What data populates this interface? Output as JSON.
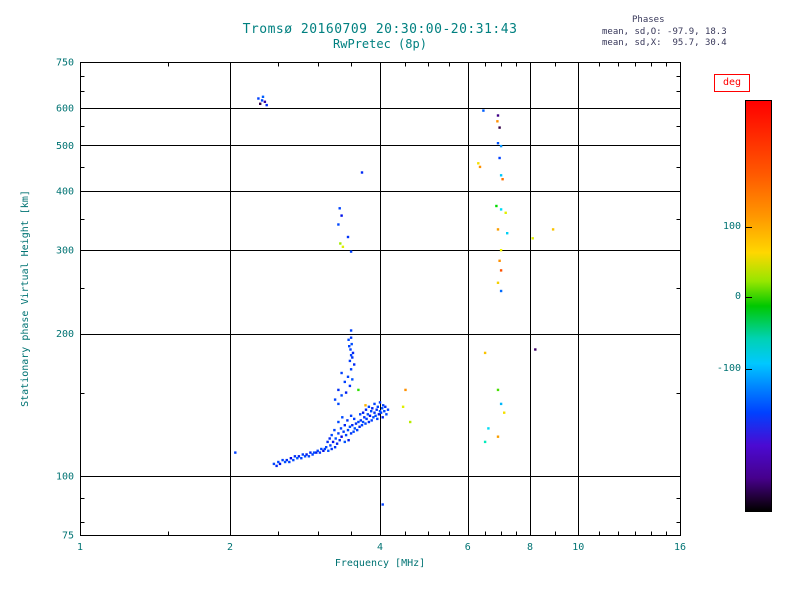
{
  "title": {
    "line1": "Tromsø 20160709 20:30:00-20:31:43",
    "line2": "RwPretec (8p)"
  },
  "stats": {
    "header": "Phases",
    "line_o": "mean, sd,O: -97.9, 18.3",
    "line_x": "mean, sd,X:  95.7, 30.4"
  },
  "colorbar": {
    "label": "deg",
    "ticks": [
      {
        "value": "100",
        "frac": 0.31
      },
      {
        "value": "0",
        "frac": 0.48
      },
      {
        "value": "-100",
        "frac": 0.655
      }
    ]
  },
  "colors": {
    "title_text": "#008080",
    "axis_text": "#007373",
    "stats_text": "#38385a",
    "deg_label": "#ff0000",
    "grid": "#000000"
  },
  "chart_data": {
    "type": "scatter",
    "title": "Tromsø 20160709 20:30:00-20:31:43",
    "subtitle": "RwPretec (8p)",
    "xlabel": "Frequency [MHz]",
    "ylabel": "Stationary phase Virtual Height [km]",
    "xscale": "log",
    "yscale": "log",
    "xlim": [
      1,
      16
    ],
    "ylim": [
      75,
      750
    ],
    "xticks": [
      1,
      2,
      4,
      6,
      8,
      10,
      16
    ],
    "xtick_labels": [
      "1",
      "2",
      "4",
      "6",
      "8",
      "10",
      "16"
    ],
    "yticks": [
      75,
      100,
      200,
      300,
      400,
      500,
      600,
      750
    ],
    "ytick_labels": [
      "75",
      "100",
      "200",
      "300",
      "400",
      "500",
      "600",
      "750"
    ],
    "xgrid": [
      2,
      4,
      6,
      8,
      10
    ],
    "ygrid": [
      100,
      200,
      300,
      400,
      500,
      600
    ],
    "xminor": [
      1.5,
      2.5,
      3,
      3.5,
      4.5,
      5,
      5.5,
      6.5,
      7,
      7.5,
      9,
      11,
      12,
      13,
      14,
      15
    ],
    "yminor": [
      80,
      90,
      150,
      250,
      350,
      450,
      550,
      650,
      700
    ],
    "color_scale": {
      "label": "deg",
      "units": "degrees",
      "range": [
        -180,
        180
      ],
      "ticks": [
        100,
        0,
        -100
      ]
    },
    "points": [
      [
        2.05,
        112,
        -100
      ],
      [
        2.45,
        106,
        -98
      ],
      [
        2.48,
        105,
        -105
      ],
      [
        2.5,
        107,
        -95
      ],
      [
        2.52,
        106,
        -110
      ],
      [
        2.55,
        108,
        -100
      ],
      [
        2.58,
        107,
        -92
      ],
      [
        2.6,
        108,
        -104
      ],
      [
        2.63,
        107,
        -99
      ],
      [
        2.65,
        109,
        -112
      ],
      [
        2.68,
        108,
        -96
      ],
      [
        2.7,
        110,
        -103
      ],
      [
        2.73,
        109,
        -90
      ],
      [
        2.75,
        110,
        -107
      ],
      [
        2.78,
        109,
        -98
      ],
      [
        2.8,
        111,
        -101
      ],
      [
        2.83,
        110,
        -94
      ],
      [
        2.85,
        111,
        -109
      ],
      [
        2.88,
        110,
        -97
      ],
      [
        2.9,
        112,
        -105
      ],
      [
        2.93,
        111,
        -100
      ],
      [
        2.95,
        112,
        -93
      ],
      [
        2.98,
        112,
        -108
      ],
      [
        3.0,
        113,
        -99
      ],
      [
        3.03,
        112,
        -102
      ],
      [
        3.05,
        114,
        -96
      ],
      [
        3.08,
        113,
        -111
      ],
      [
        3.1,
        114,
        -100
      ],
      [
        3.12,
        115,
        -97
      ],
      [
        3.14,
        118,
        -104
      ],
      [
        3.15,
        113,
        -91
      ],
      [
        3.17,
        120,
        -106
      ],
      [
        3.18,
        116,
        -99
      ],
      [
        3.2,
        114,
        -102
      ],
      [
        3.2,
        122,
        -95
      ],
      [
        3.22,
        118,
        -110
      ],
      [
        3.24,
        125,
        -98
      ],
      [
        3.25,
        115,
        -103
      ],
      [
        3.26,
        120,
        -92
      ],
      [
        3.28,
        117,
        -107
      ],
      [
        3.3,
        123,
        -100
      ],
      [
        3.3,
        130,
        -96
      ],
      [
        3.32,
        119,
        -105
      ],
      [
        3.34,
        126,
        -99
      ],
      [
        3.35,
        121,
        -113
      ],
      [
        3.36,
        133,
        -95
      ],
      [
        3.38,
        124,
        -101
      ],
      [
        3.4,
        118,
        -90
      ],
      [
        3.4,
        128,
        -106
      ],
      [
        3.42,
        122,
        -98
      ],
      [
        3.44,
        131,
        -103
      ],
      [
        3.45,
        125,
        -97
      ],
      [
        3.46,
        119,
        -109
      ],
      [
        3.48,
        127,
        -94
      ],
      [
        3.5,
        123,
        -102
      ],
      [
        3.5,
        134,
        -99
      ],
      [
        3.52,
        128,
        -106
      ],
      [
        3.54,
        124,
        -96
      ],
      [
        3.55,
        132,
        -101
      ],
      [
        3.56,
        126,
        -92
      ],
      [
        3.58,
        129,
        -104
      ],
      [
        3.6,
        125,
        -100
      ],
      [
        3.62,
        130,
        -98
      ],
      [
        3.64,
        127,
        -105
      ],
      [
        3.65,
        135,
        -95
      ],
      [
        3.66,
        131,
        -102
      ],
      [
        3.68,
        128,
        -99
      ],
      [
        3.7,
        136,
        -108
      ],
      [
        3.7,
        130,
        -94
      ],
      [
        3.72,
        133,
        -103
      ],
      [
        3.74,
        129,
        -97
      ],
      [
        3.75,
        138,
        -106
      ],
      [
        3.76,
        132,
        -100
      ],
      [
        3.78,
        135,
        -92
      ],
      [
        3.8,
        130,
        -104
      ],
      [
        3.8,
        140,
        -98
      ],
      [
        3.82,
        134,
        -110
      ],
      [
        3.84,
        137,
        -96
      ],
      [
        3.85,
        131,
        -101
      ],
      [
        3.86,
        139,
        -107
      ],
      [
        3.88,
        133,
        -95
      ],
      [
        3.9,
        136,
        -103
      ],
      [
        3.9,
        142,
        -99
      ],
      [
        3.92,
        134,
        -91
      ],
      [
        3.94,
        138,
        -105
      ],
      [
        3.95,
        132,
        -100
      ],
      [
        3.96,
        140,
        -97
      ],
      [
        3.98,
        135,
        -109
      ],
      [
        4.0,
        137,
        -96
      ],
      [
        4.0,
        143,
        -102
      ],
      [
        4.02,
        136,
        -99
      ],
      [
        4.04,
        139,
        -93
      ],
      [
        4.05,
        133,
        -107
      ],
      [
        4.06,
        141,
        -100
      ],
      [
        4.08,
        137,
        -98
      ],
      [
        4.1,
        140,
        -104
      ],
      [
        4.12,
        135,
        -96
      ],
      [
        4.15,
        138,
        -101
      ],
      [
        3.25,
        145,
        -98
      ],
      [
        3.3,
        152,
        -104
      ],
      [
        3.35,
        148,
        -95
      ],
      [
        3.4,
        158,
        -100
      ],
      [
        3.42,
        150,
        -107
      ],
      [
        3.45,
        162,
        -97
      ],
      [
        3.48,
        155,
        -103
      ],
      [
        3.5,
        168,
        -99
      ],
      [
        3.52,
        160,
        -92
      ],
      [
        3.55,
        172,
        -105
      ],
      [
        3.35,
        165,
        -100
      ],
      [
        3.3,
        142,
        -96
      ],
      [
        3.48,
        175,
        -101
      ],
      [
        3.5,
        180,
        -97
      ],
      [
        3.52,
        178,
        -104
      ],
      [
        3.49,
        185,
        -99
      ],
      [
        3.51,
        190,
        -94
      ],
      [
        3.5,
        196,
        -102
      ],
      [
        3.47,
        188,
        -98
      ],
      [
        3.53,
        182,
        -106
      ],
      [
        3.5,
        203,
        -100
      ],
      [
        3.46,
        194,
        -95
      ],
      [
        3.68,
        438,
        -105
      ],
      [
        3.32,
        368,
        -98
      ],
      [
        3.35,
        355,
        -110
      ],
      [
        3.3,
        340,
        -95
      ],
      [
        3.33,
        310,
        45
      ],
      [
        3.37,
        305,
        60
      ],
      [
        3.5,
        298,
        -100
      ],
      [
        3.45,
        320,
        -103
      ],
      [
        3.74,
        141,
        85
      ],
      [
        3.62,
        152,
        20
      ],
      [
        4.5,
        152,
        95
      ],
      [
        4.45,
        140,
        60
      ],
      [
        4.6,
        130,
        50
      ],
      [
        4.05,
        87,
        -100
      ],
      [
        2.28,
        628,
        -100
      ],
      [
        2.32,
        622,
        -95
      ],
      [
        2.35,
        618,
        -140
      ],
      [
        2.3,
        612,
        -170
      ],
      [
        2.37,
        608,
        -105
      ],
      [
        2.33,
        633,
        -85
      ],
      [
        6.45,
        592,
        -85
      ],
      [
        6.9,
        578,
        -150
      ],
      [
        6.88,
        562,
        95
      ],
      [
        6.95,
        545,
        -170
      ],
      [
        6.3,
        458,
        70
      ],
      [
        6.35,
        450,
        95
      ],
      [
        6.9,
        505,
        -90
      ],
      [
        7.0,
        498,
        -60
      ],
      [
        6.95,
        470,
        -100
      ],
      [
        7.0,
        432,
        -40
      ],
      [
        7.05,
        424,
        110
      ],
      [
        6.85,
        372,
        10
      ],
      [
        7.0,
        366,
        -30
      ],
      [
        7.15,
        360,
        60
      ],
      [
        6.9,
        332,
        90
      ],
      [
        7.2,
        326,
        -35
      ],
      [
        8.9,
        332,
        80
      ],
      [
        7.0,
        300,
        65
      ],
      [
        6.95,
        285,
        95
      ],
      [
        7.0,
        272,
        130
      ],
      [
        8.1,
        318,
        60
      ],
      [
        6.9,
        256,
        75
      ],
      [
        7.0,
        246,
        -80
      ],
      [
        6.5,
        182,
        80
      ],
      [
        8.2,
        185,
        -160
      ],
      [
        6.9,
        152,
        25
      ],
      [
        7.0,
        142,
        -45
      ],
      [
        7.1,
        136,
        70
      ],
      [
        6.6,
        126,
        -30
      ],
      [
        6.9,
        121,
        90
      ],
      [
        6.5,
        118,
        -20
      ]
    ]
  }
}
